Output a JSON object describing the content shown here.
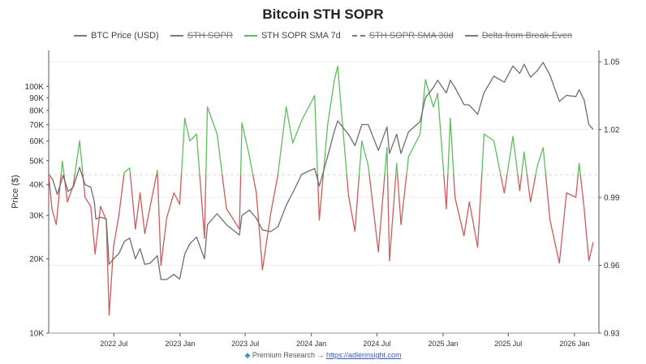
{
  "chart_data": {
    "type": "line",
    "title": "Bitcoin STH SOPR",
    "ylabel": "Price ($)",
    "ylabel_right": "",
    "y_scale": "log",
    "ylim": [
      10000,
      140000
    ],
    "y2lim": [
      0.93,
      1.055
    ],
    "xlim": [
      "2022-01-01",
      "2026-03-10"
    ],
    "x_ticks": [
      {
        "date": "2022-07-01",
        "label": "2022 Jul"
      },
      {
        "date": "2023-01-01",
        "label": "2023 Jan"
      },
      {
        "date": "2023-07-01",
        "label": "2023 Jul"
      },
      {
        "date": "2024-01-01",
        "label": "2024 Jan"
      },
      {
        "date": "2024-07-01",
        "label": "2024 Jul"
      },
      {
        "date": "2025-01-01",
        "label": "2025 Jan"
      },
      {
        "date": "2025-07-01",
        "label": "2025 Jul"
      },
      {
        "date": "2026-01-01",
        "label": "2026 Jan"
      }
    ],
    "y_ticks": [
      {
        "value": 10000,
        "label": "10K"
      },
      {
        "value": 20000,
        "label": "20K"
      },
      {
        "value": 30000,
        "label": "30K"
      },
      {
        "value": 40000,
        "label": "40K"
      },
      {
        "value": 50000,
        "label": "50K"
      },
      {
        "value": 60000,
        "label": "60K"
      },
      {
        "value": 70000,
        "label": "70K"
      },
      {
        "value": 80000,
        "label": "80K"
      },
      {
        "value": 90000,
        "label": "90K"
      },
      {
        "value": 100000,
        "label": "100K"
      }
    ],
    "y2_ticks": [
      {
        "value": 0.93,
        "label": "0.93"
      },
      {
        "value": 0.96,
        "label": "0.96"
      },
      {
        "value": 0.99,
        "label": "0.99"
      },
      {
        "value": 1.02,
        "label": "1.02"
      },
      {
        "value": 1.05,
        "label": "1.05"
      }
    ],
    "break_even": 1.0,
    "legend": [
      {
        "label": "BTC Price (USD)",
        "visible": true,
        "style": "solid",
        "color": "#7a7a7a"
      },
      {
        "label": "STH SOPR",
        "visible": false,
        "style": "solid",
        "color": "#7a7a7a"
      },
      {
        "label": "STH SOPR SMA 7d",
        "visible": true,
        "style": "solid",
        "color": "#5cbf5c"
      },
      {
        "label": "STH SOPR SMA 30d",
        "visible": false,
        "style": "dashed",
        "color": "#7a7a7a"
      },
      {
        "label": "Delta from Break-Even",
        "visible": false,
        "style": "solid",
        "color": "#7a7a7a"
      }
    ],
    "colors": {
      "price": "#6e6e6e",
      "above": "#5cbf5c",
      "below": "#d05a5a",
      "grid": "#eeeeee",
      "break_even_line": "#d9d9d9"
    },
    "series": [
      {
        "name": "BTC Price (USD)",
        "axis": "left",
        "points": [
          [
            "2022-01-01",
            44000
          ],
          [
            "2022-01-12",
            42000
          ],
          [
            "2022-01-25",
            36500
          ],
          [
            "2022-02-10",
            43500
          ],
          [
            "2022-02-24",
            37500
          ],
          [
            "2022-03-10",
            39000
          ],
          [
            "2022-03-28",
            47000
          ],
          [
            "2022-04-12",
            40000
          ],
          [
            "2022-04-28",
            39000
          ],
          [
            "2022-05-08",
            34000
          ],
          [
            "2022-05-12",
            29000
          ],
          [
            "2022-05-25",
            29500
          ],
          [
            "2022-06-10",
            29000
          ],
          [
            "2022-06-18",
            19000
          ],
          [
            "2022-06-30",
            20000
          ],
          [
            "2022-07-15",
            21000
          ],
          [
            "2022-07-30",
            23500
          ],
          [
            "2022-08-14",
            24300
          ],
          [
            "2022-08-30",
            20000
          ],
          [
            "2022-09-12",
            22000
          ],
          [
            "2022-09-25",
            19000
          ],
          [
            "2022-10-10",
            19200
          ],
          [
            "2022-10-30",
            20600
          ],
          [
            "2022-11-09",
            16500
          ],
          [
            "2022-11-25",
            16500
          ],
          [
            "2022-12-15",
            17300
          ],
          [
            "2022-12-31",
            16550
          ],
          [
            "2023-01-14",
            20900
          ],
          [
            "2023-01-28",
            23000
          ],
          [
            "2023-02-16",
            24500
          ],
          [
            "2023-03-10",
            20000
          ],
          [
            "2023-03-18",
            27500
          ],
          [
            "2023-04-14",
            30500
          ],
          [
            "2023-05-10",
            27500
          ],
          [
            "2023-06-15",
            25000
          ],
          [
            "2023-06-22",
            30000
          ],
          [
            "2023-07-13",
            31500
          ],
          [
            "2023-08-01",
            29200
          ],
          [
            "2023-08-18",
            26200
          ],
          [
            "2023-09-10",
            25800
          ],
          [
            "2023-09-30",
            27000
          ],
          [
            "2023-10-23",
            33000
          ],
          [
            "2023-11-10",
            37000
          ],
          [
            "2023-12-05",
            44000
          ],
          [
            "2024-01-10",
            46500
          ],
          [
            "2024-01-23",
            39500
          ],
          [
            "2024-02-15",
            52000
          ],
          [
            "2024-03-05",
            66000
          ],
          [
            "2024-03-14",
            72500
          ],
          [
            "2024-04-13",
            64000
          ],
          [
            "2024-05-01",
            57500
          ],
          [
            "2024-05-20",
            70000
          ],
          [
            "2024-06-07",
            70000
          ],
          [
            "2024-07-05",
            55000
          ],
          [
            "2024-07-29",
            68500
          ],
          [
            "2024-08-05",
            53500
          ],
          [
            "2024-08-25",
            64000
          ],
          [
            "2024-09-06",
            53500
          ],
          [
            "2024-09-27",
            65500
          ],
          [
            "2024-10-29",
            72000
          ],
          [
            "2024-11-13",
            90000
          ],
          [
            "2024-12-05",
            99000
          ],
          [
            "2024-12-17",
            106000
          ],
          [
            "2025-01-10",
            94000
          ],
          [
            "2025-01-21",
            106000
          ],
          [
            "2025-02-03",
            99000
          ],
          [
            "2025-02-28",
            84500
          ],
          [
            "2025-03-15",
            84000
          ],
          [
            "2025-04-07",
            77000
          ],
          [
            "2025-04-25",
            94500
          ],
          [
            "2025-05-22",
            110000
          ],
          [
            "2025-06-20",
            104000
          ],
          [
            "2025-07-14",
            121000
          ],
          [
            "2025-08-02",
            113000
          ],
          [
            "2025-08-14",
            123000
          ],
          [
            "2025-09-01",
            109000
          ],
          [
            "2025-09-20",
            116000
          ],
          [
            "2025-10-06",
            125000
          ],
          [
            "2025-10-25",
            111000
          ],
          [
            "2025-11-20",
            87000
          ],
          [
            "2025-12-10",
            92000
          ],
          [
            "2026-01-05",
            91000
          ],
          [
            "2026-01-14",
            97000
          ],
          [
            "2026-01-28",
            88000
          ],
          [
            "2026-02-10",
            70000
          ],
          [
            "2026-02-22",
            67000
          ]
        ]
      },
      {
        "name": "STH SOPR SMA 7d",
        "axis": "right",
        "points": [
          [
            "2022-01-01",
            1.0
          ],
          [
            "2022-01-10",
            0.985
          ],
          [
            "2022-01-22",
            0.978
          ],
          [
            "2022-02-08",
            1.006
          ],
          [
            "2022-02-22",
            0.988
          ],
          [
            "2022-03-10",
            0.995
          ],
          [
            "2022-03-28",
            1.015
          ],
          [
            "2022-04-12",
            0.99
          ],
          [
            "2022-04-28",
            0.986
          ],
          [
            "2022-05-10",
            0.965
          ],
          [
            "2022-05-25",
            0.986
          ],
          [
            "2022-06-10",
            0.98
          ],
          [
            "2022-06-18",
            0.938
          ],
          [
            "2022-06-30",
            0.968
          ],
          [
            "2022-07-15",
            0.982
          ],
          [
            "2022-07-30",
            1.001
          ],
          [
            "2022-08-14",
            1.003
          ],
          [
            "2022-08-30",
            0.976
          ],
          [
            "2022-09-12",
            0.992
          ],
          [
            "2022-09-25",
            0.974
          ],
          [
            "2022-10-10",
            0.986
          ],
          [
            "2022-10-30",
            1.002
          ],
          [
            "2022-11-09",
            0.96
          ],
          [
            "2022-11-25",
            0.981
          ],
          [
            "2022-12-15",
            0.992
          ],
          [
            "2022-12-31",
            0.987
          ],
          [
            "2023-01-14",
            1.025
          ],
          [
            "2023-01-28",
            1.015
          ],
          [
            "2023-02-16",
            1.018
          ],
          [
            "2023-03-10",
            0.972
          ],
          [
            "2023-03-18",
            1.03
          ],
          [
            "2023-04-14",
            1.018
          ],
          [
            "2023-05-10",
            0.985
          ],
          [
            "2023-06-15",
            0.976
          ],
          [
            "2023-06-22",
            1.023
          ],
          [
            "2023-07-13",
            1.008
          ],
          [
            "2023-08-01",
            0.992
          ],
          [
            "2023-08-18",
            0.958
          ],
          [
            "2023-09-10",
            0.983
          ],
          [
            "2023-09-30",
            1.0
          ],
          [
            "2023-10-23",
            1.03
          ],
          [
            "2023-11-10",
            1.014
          ],
          [
            "2023-12-05",
            1.024
          ],
          [
            "2024-01-10",
            1.035
          ],
          [
            "2024-01-23",
            0.98
          ],
          [
            "2024-02-15",
            1.022
          ],
          [
            "2024-03-05",
            1.042
          ],
          [
            "2024-03-14",
            1.048
          ],
          [
            "2024-04-13",
            0.991
          ],
          [
            "2024-05-01",
            0.975
          ],
          [
            "2024-05-20",
            1.015
          ],
          [
            "2024-06-07",
            1.004
          ],
          [
            "2024-07-05",
            0.966
          ],
          [
            "2024-07-29",
            1.012
          ],
          [
            "2024-08-05",
            0.962
          ],
          [
            "2024-08-25",
            1.005
          ],
          [
            "2024-09-06",
            0.978
          ],
          [
            "2024-09-27",
            1.008
          ],
          [
            "2024-10-29",
            1.018
          ],
          [
            "2024-11-13",
            1.042
          ],
          [
            "2024-12-05",
            1.03
          ],
          [
            "2024-12-17",
            1.036
          ],
          [
            "2025-01-10",
            0.985
          ],
          [
            "2025-01-21",
            1.025
          ],
          [
            "2025-02-03",
            0.99
          ],
          [
            "2025-02-28",
            0.973
          ],
          [
            "2025-03-15",
            0.988
          ],
          [
            "2025-04-07",
            0.968
          ],
          [
            "2025-04-25",
            1.018
          ],
          [
            "2025-05-22",
            1.015
          ],
          [
            "2025-06-20",
            0.992
          ],
          [
            "2025-07-14",
            1.017
          ],
          [
            "2025-08-02",
            0.993
          ],
          [
            "2025-08-14",
            1.01
          ],
          [
            "2025-09-01",
            0.988
          ],
          [
            "2025-09-20",
            1.004
          ],
          [
            "2025-10-06",
            1.012
          ],
          [
            "2025-10-25",
            0.98
          ],
          [
            "2025-11-20",
            0.961
          ],
          [
            "2025-12-10",
            0.992
          ],
          [
            "2026-01-05",
            0.99
          ],
          [
            "2026-01-14",
            1.005
          ],
          [
            "2026-01-28",
            0.985
          ],
          [
            "2026-02-10",
            0.962
          ],
          [
            "2026-02-22",
            0.97
          ]
        ]
      }
    ]
  },
  "footer": {
    "prefix": "Premium Research →",
    "link": "https://adlerinsight.com"
  }
}
